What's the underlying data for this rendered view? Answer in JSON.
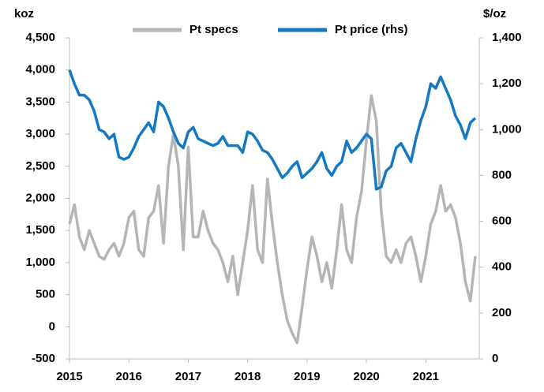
{
  "chart_data": {
    "type": "line",
    "y_label": "koz",
    "y2_label": "$/oz",
    "x": [
      2015,
      2015.083,
      2015.167,
      2015.25,
      2015.333,
      2015.417,
      2015.5,
      2015.583,
      2015.667,
      2015.75,
      2015.833,
      2015.917,
      2016,
      2016.083,
      2016.167,
      2016.25,
      2016.333,
      2016.417,
      2016.5,
      2016.583,
      2016.667,
      2016.75,
      2016.833,
      2016.917,
      2017,
      2017.083,
      2017.167,
      2017.25,
      2017.333,
      2017.417,
      2017.5,
      2017.583,
      2017.667,
      2017.75,
      2017.833,
      2017.917,
      2018,
      2018.083,
      2018.167,
      2018.25,
      2018.333,
      2018.417,
      2018.5,
      2018.583,
      2018.667,
      2018.75,
      2018.833,
      2018.917,
      2019,
      2019.083,
      2019.167,
      2019.25,
      2019.333,
      2019.417,
      2019.5,
      2019.583,
      2019.667,
      2019.75,
      2019.833,
      2019.917,
      2020,
      2020.083,
      2020.167,
      2020.25,
      2020.333,
      2020.417,
      2020.5,
      2020.583,
      2020.667,
      2020.75,
      2020.833,
      2020.917,
      2021,
      2021.083,
      2021.167,
      2021.25,
      2021.333,
      2021.417,
      2021.5,
      2021.583,
      2021.667,
      2021.75,
      2021.833
    ],
    "series": [
      {
        "name": "Pt specs",
        "color": "#b5b5b5",
        "axis": "y",
        "values": [
          1600,
          1900,
          1400,
          1200,
          1500,
          1300,
          1100,
          1050,
          1200,
          1300,
          1100,
          1300,
          1700,
          1800,
          1200,
          1100,
          1700,
          1800,
          2200,
          1300,
          2500,
          3000,
          2500,
          1200,
          2800,
          1400,
          1400,
          1800,
          1500,
          1300,
          1200,
          1000,
          700,
          1100,
          500,
          1000,
          1500,
          2200,
          1200,
          1000,
          2300,
          1600,
          1000,
          500,
          100,
          -100,
          -250,
          300,
          900,
          1400,
          1100,
          700,
          1000,
          600,
          1200,
          1900,
          1200,
          1000,
          1700,
          2100,
          2900,
          3600,
          3200,
          1800,
          1100,
          1000,
          1200,
          1000,
          1300,
          1400,
          1100,
          700,
          1100,
          1600,
          1800,
          2200,
          1800,
          1900,
          1700,
          1300,
          700,
          400,
          1100
        ]
      },
      {
        "name": "Pt price (rhs)",
        "color": "#1479c0",
        "axis": "y2",
        "values": [
          1260,
          1200,
          1150,
          1150,
          1130,
          1080,
          1000,
          990,
          960,
          980,
          880,
          870,
          880,
          920,
          970,
          1000,
          1030,
          990,
          1120,
          1100,
          1050,
          990,
          940,
          920,
          990,
          1010,
          960,
          950,
          940,
          930,
          940,
          970,
          930,
          930,
          930,
          900,
          990,
          980,
          950,
          910,
          900,
          870,
          830,
          790,
          810,
          840,
          860,
          790,
          810,
          830,
          860,
          900,
          830,
          800,
          840,
          860,
          950,
          900,
          920,
          950,
          980,
          960,
          740,
          750,
          820,
          840,
          920,
          940,
          900,
          860,
          960,
          1040,
          1100,
          1200,
          1180,
          1230,
          1180,
          1130,
          1060,
          1020,
          960,
          1030,
          1050
        ]
      }
    ],
    "xlim": [
      2015,
      2021.9
    ],
    "xticks": [
      2015,
      2016,
      2017,
      2018,
      2019,
      2020,
      2021
    ],
    "ylim": [
      -500,
      4500
    ],
    "yticks": [
      -500,
      0,
      {
        "value": 500,
        "label": "500"
      },
      {
        "value": 1000,
        "label": "1,000"
      },
      {
        "value": 1500,
        "label": "1,500"
      },
      {
        "value": 2000,
        "label": "2,000"
      },
      {
        "value": 2500,
        "label": "2,500"
      },
      {
        "value": 3000,
        "label": "3,000"
      },
      {
        "value": 3500,
        "label": "3,500"
      },
      {
        "value": 4000,
        "label": "4,000"
      },
      {
        "value": 4500,
        "label": "4,500"
      }
    ],
    "y2lim": [
      0,
      1400
    ],
    "y2ticks": [
      0,
      200,
      400,
      600,
      800,
      {
        "value": 1000,
        "label": "1,000"
      },
      {
        "value": 1200,
        "label": "1,200"
      },
      {
        "value": 1400,
        "label": "1,400"
      }
    ],
    "legend": "top"
  }
}
